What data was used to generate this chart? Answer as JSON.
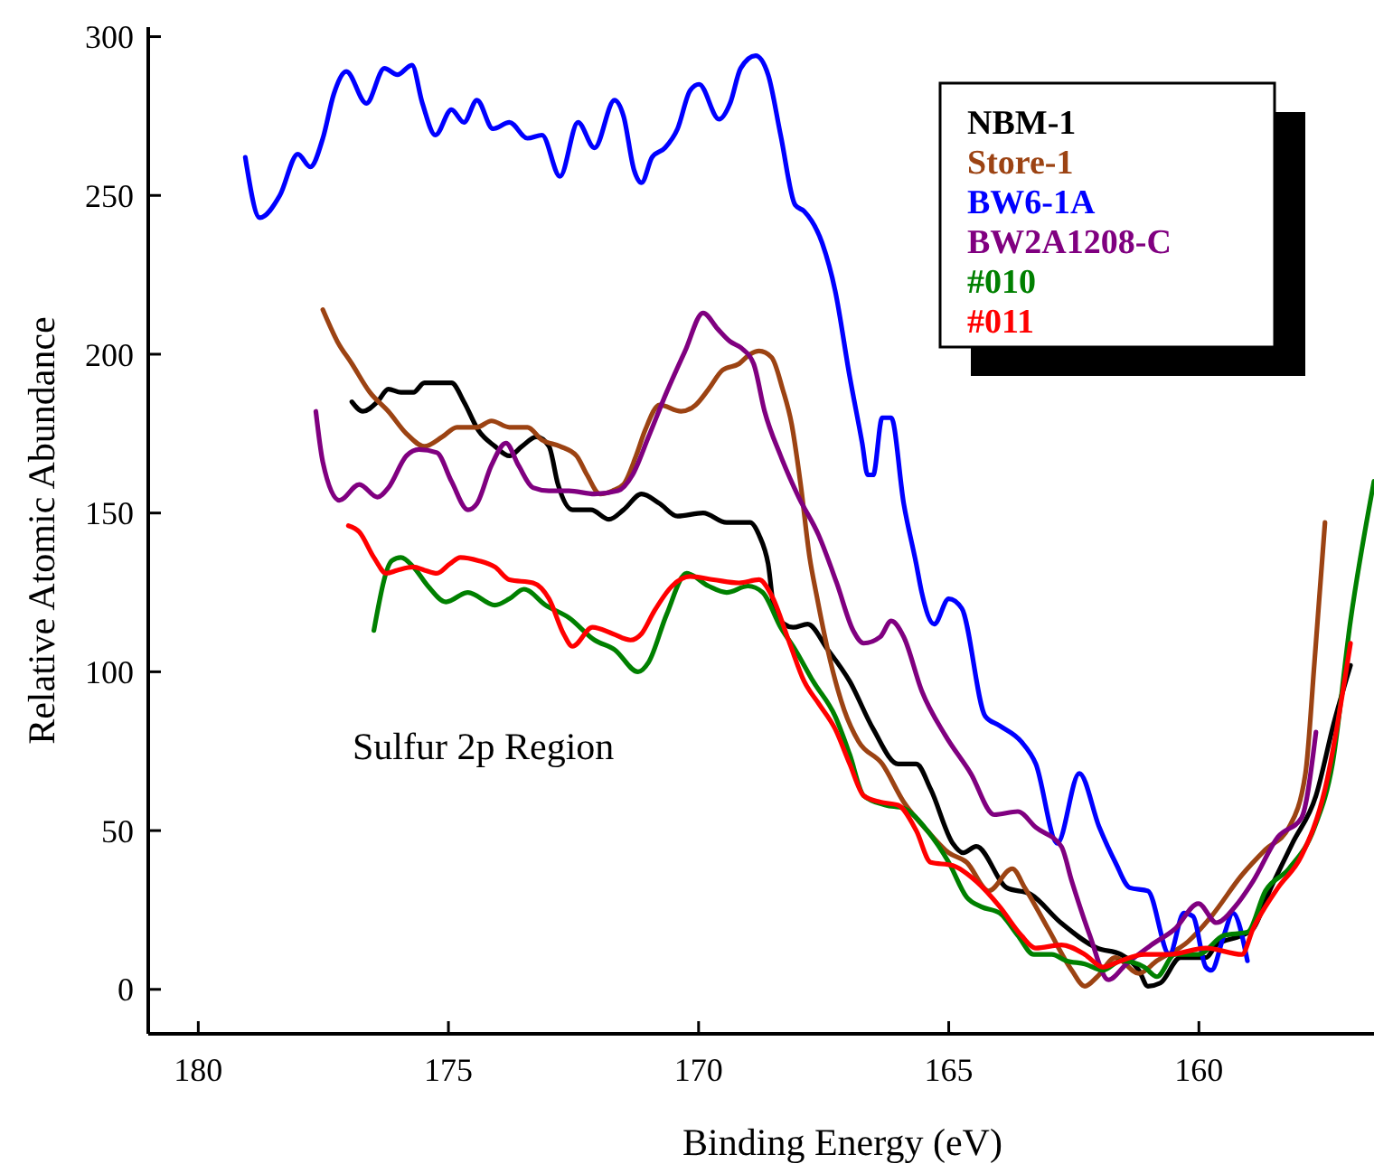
{
  "chart_data": {
    "type": "line",
    "xlabel": "Binding Energy (eV)",
    "ylabel": "Relative Atomic Abundance",
    "xlim": [
      181,
      156.5
    ],
    "ylim": [
      -14,
      303
    ],
    "xticks": [
      180,
      175,
      170,
      165,
      160
    ],
    "yticks": [
      0,
      50,
      100,
      150,
      200,
      250,
      300
    ],
    "grid": false,
    "legend": "top right",
    "marker": "none",
    "line_style": "solid",
    "annotations": [
      "Sulfur 2p Region"
    ],
    "series": [
      {
        "name": "NBM-1",
        "color": "#000000",
        "x": [
          176.93,
          176.71,
          176.42,
          176.2,
          175.95,
          175.7,
          175.48,
          174.94,
          174.69,
          174.4,
          174.07,
          173.78,
          173.53,
          173.24,
          172.99,
          172.81,
          172.52,
          172.15,
          171.79,
          171.5,
          171.14,
          170.78,
          170.42,
          169.91,
          169.44,
          168.97,
          168.79,
          168.61,
          168.47,
          168.11,
          167.82,
          167.42,
          166.98,
          166.51,
          166.01,
          165.65,
          165.36,
          164.92,
          164.71,
          164.45,
          163.84,
          163.37,
          162.76,
          162.03,
          161.56,
          161.2,
          161.02,
          160.77,
          160.37,
          159.86,
          159.65,
          159.14,
          158.92,
          158.56,
          158.13,
          157.66,
          157.3,
          156.97
        ],
        "values": [
          185,
          182,
          185,
          189,
          188,
          188,
          191,
          191,
          185,
          176,
          171,
          168,
          171,
          174,
          171,
          159,
          151,
          151,
          148,
          151,
          156,
          153,
          149,
          150,
          147,
          147,
          143,
          134,
          118,
          114,
          115,
          107,
          97,
          82,
          71,
          71,
          63,
          46,
          43,
          45,
          32,
          30,
          21,
          13,
          11,
          6,
          1,
          2,
          10,
          10,
          14,
          17,
          19,
          32,
          46,
          61,
          84,
          102
        ]
      },
      {
        "name": "Store-1",
        "color": "#9c4313",
        "x": [
          177.51,
          177.22,
          176.93,
          176.57,
          176.2,
          175.84,
          175.48,
          175.12,
          174.83,
          174.43,
          174.14,
          173.78,
          173.42,
          173.13,
          172.77,
          172.44,
          172.23,
          171.97,
          171.72,
          171.5,
          171.25,
          171.07,
          170.78,
          170.35,
          170.06,
          169.8,
          169.52,
          169.19,
          168.97,
          168.79,
          168.54,
          168.32,
          168.14,
          167.96,
          167.78,
          167.64,
          167.42,
          167.09,
          166.8,
          166.33,
          165.9,
          165.43,
          165,
          164.64,
          164.2,
          163.73,
          163.48,
          163.01,
          162.54,
          162.28,
          162.03,
          161.67,
          161.2,
          160.84,
          160.22,
          159.75,
          159.14,
          158.67,
          158.2,
          157.87,
          157.69,
          157.48
        ],
        "values": [
          214,
          204,
          197,
          188,
          182,
          175,
          171,
          174,
          177,
          177,
          179,
          177,
          177,
          173,
          171,
          168,
          162,
          156,
          157,
          159,
          168,
          176,
          184,
          182,
          184,
          189,
          195,
          197,
          200,
          201,
          199,
          189,
          178,
          159,
          136,
          124,
          107,
          88,
          78,
          71,
          59,
          50,
          43,
          40,
          31,
          38,
          32,
          19,
          6,
          1,
          4,
          10,
          5,
          9,
          15,
          23,
          36,
          44,
          51,
          68,
          103,
          147
        ]
      },
      {
        "name": "BW6-1A",
        "color": "#0000ff",
        "x": [
          179.06,
          178.77,
          178.37,
          178.01,
          177.76,
          177.51,
          177.29,
          177.04,
          176.64,
          176.28,
          176.02,
          175.73,
          175.52,
          175.26,
          174.94,
          174.69,
          174.43,
          174.11,
          173.78,
          173.42,
          173.13,
          172.77,
          172.41,
          172.08,
          171.68,
          171.5,
          171.29,
          171.14,
          170.93,
          170.67,
          170.42,
          170.17,
          169.99,
          169.59,
          169.37,
          169.16,
          168.86,
          168.61,
          168.36,
          168.07,
          167.89,
          167.53,
          167.27,
          166.98,
          166.73,
          166.62,
          166.51,
          166.33,
          166.15,
          165.9,
          165.65,
          165.54,
          165.29,
          165,
          164.74,
          164.27,
          163.98,
          163.55,
          163.26,
          162.83,
          162.39,
          161.99,
          161.67,
          161.38,
          161.02,
          160.59,
          160.3,
          160.12,
          159.86,
          159.75,
          159.5,
          159.32,
          159.03
        ],
        "values": [
          262,
          243,
          250,
          263,
          259,
          268,
          282,
          289,
          279,
          290,
          288,
          291,
          279,
          269,
          277,
          273,
          280,
          271,
          273,
          268,
          269,
          256,
          273,
          265,
          280,
          275,
          258,
          254,
          262,
          265,
          271,
          283,
          285,
          274,
          279,
          290,
          294,
          288,
          269,
          247,
          245,
          235,
          220,
          193,
          172,
          162,
          162,
          180,
          180,
          153,
          134,
          125,
          115,
          123,
          120,
          86,
          83,
          78,
          71,
          46,
          68,
          51,
          40,
          32,
          31,
          11,
          24,
          23,
          7,
          6,
          17,
          24,
          9
        ]
      },
      {
        "name": "BW2A1208-C",
        "color": "#800080",
        "x": [
          177.65,
          177.51,
          177.18,
          176.78,
          176.42,
          176.2,
          175.84,
          175.59,
          175.23,
          174.94,
          174.61,
          174.43,
          174.14,
          173.85,
          173.6,
          173.31,
          172.99,
          172.59,
          172.08,
          171.61,
          171.32,
          171,
          170.64,
          170.27,
          169.91,
          169.62,
          169.37,
          169.15,
          168.9,
          168.68,
          168.36,
          168,
          167.6,
          167.24,
          166.91,
          166.7,
          166.37,
          166.15,
          165.9,
          165.54,
          165.07,
          164.56,
          164.09,
          163.62,
          163.26,
          162.75,
          162.54,
          162.18,
          161.81,
          161.45,
          160.95,
          160.48,
          160.01,
          159.65,
          159.28,
          158.92,
          158.42,
          157.95,
          157.66
        ],
        "values": [
          182,
          166,
          154,
          159,
          155,
          158,
          168,
          170,
          169,
          160,
          151,
          153,
          165,
          172,
          165,
          158,
          157,
          157,
          156,
          157,
          162,
          174,
          188,
          201,
          213,
          208,
          204,
          202,
          197,
          182,
          168,
          155,
          143,
          128,
          113,
          109,
          111,
          116,
          111,
          94,
          80,
          68,
          55,
          56,
          51,
          45,
          34,
          17,
          3,
          8,
          14,
          19,
          27,
          21,
          26,
          34,
          48,
          54,
          81
        ]
      },
      {
        "name": "#010",
        "color": "#008000",
        "x": [
          176.49,
          176.13,
          175.95,
          175.7,
          175.41,
          175.05,
          174.61,
          174.07,
          173.78,
          173.49,
          173.06,
          172.59,
          172.08,
          171.68,
          171.21,
          171,
          170.64,
          170.24,
          169.8,
          169.44,
          169.01,
          168.72,
          168.36,
          168.07,
          167.71,
          167.27,
          166.98,
          166.7,
          166.26,
          165.9,
          165.43,
          165,
          164.64,
          164.35,
          163.98,
          163.62,
          163.3,
          162.94,
          162.65,
          162.28,
          161.92,
          161.56,
          161.09,
          160.84,
          160.48,
          160.01,
          159.5,
          159.03,
          158.67,
          158.2,
          157.69,
          157.33,
          156.97,
          156.5
        ],
        "values": [
          113,
          135,
          136,
          133,
          127,
          122,
          125,
          121,
          123,
          126,
          121,
          117,
          110,
          107,
          100,
          103,
          118,
          131,
          127,
          125,
          127,
          125,
          114,
          107,
          97,
          86,
          74,
          61,
          58,
          57,
          50,
          40,
          29,
          26,
          24,
          17,
          11,
          11,
          9,
          8,
          6,
          9,
          7,
          4,
          11,
          11,
          17,
          18,
          31,
          38,
          51,
          71,
          116,
          160
        ]
      },
      {
        "name": "#011",
        "color": "#ff0000",
        "x": [
          177,
          176.78,
          176.49,
          176.24,
          176.02,
          175.7,
          175.48,
          175.23,
          174.97,
          174.76,
          174.4,
          174.07,
          173.78,
          173.31,
          172.99,
          172.7,
          172.52,
          172.12,
          171.72,
          171.36,
          171.14,
          170.89,
          170.53,
          170.17,
          169.7,
          169.19,
          168.79,
          168.54,
          168.18,
          167.89,
          167.6,
          167.27,
          166.98,
          166.7,
          166.37,
          166.01,
          165.65,
          165.36,
          164.92,
          164.45,
          163.98,
          163.55,
          163.26,
          162.75,
          162.28,
          161.92,
          161.56,
          161.09,
          160.59,
          159.86,
          159.14,
          158.92,
          158.42,
          157.95,
          157.48,
          156.97
        ],
        "values": [
          146,
          144,
          136,
          131,
          132,
          133,
          132,
          131,
          134,
          136,
          135,
          133,
          129,
          128,
          123,
          112,
          108,
          114,
          112,
          110,
          112,
          119,
          127,
          130,
          129,
          128,
          129,
          124,
          109,
          97,
          90,
          82,
          71,
          61,
          59,
          58,
          50,
          40,
          39,
          34,
          26,
          17,
          13,
          14,
          11,
          7,
          9,
          11,
          11,
          13,
          11,
          19,
          32,
          42,
          63,
          109
        ]
      }
    ]
  }
}
